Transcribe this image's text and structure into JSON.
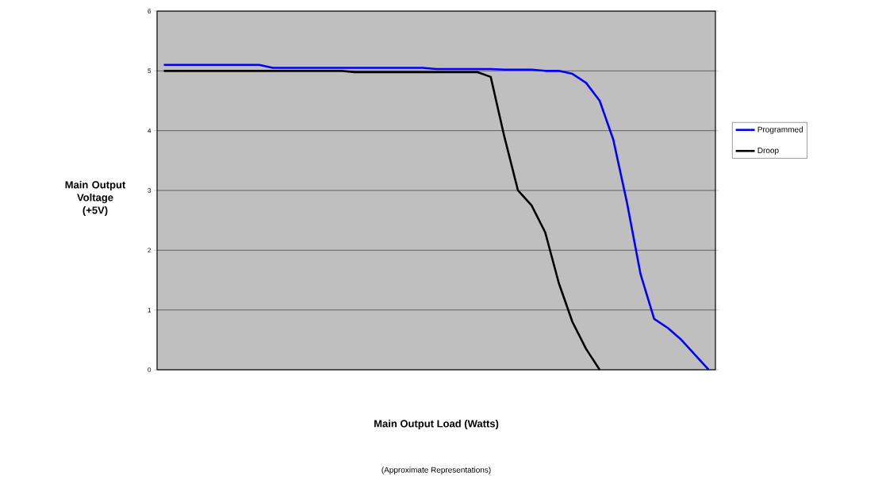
{
  "chart_data": {
    "type": "line",
    "xlabel": "Main Output Load (Watts)",
    "ylabel": "Main Output Voltage (+5V)",
    "annotations": [
      "(Approximate Representations)"
    ],
    "categories": [
      null,
      null,
      null,
      null,
      null,
      null,
      null,
      null,
      null,
      null,
      null,
      null,
      null,
      null,
      null,
      null,
      null,
      null,
      null,
      null,
      null,
      null,
      null,
      null,
      null,
      null,
      null,
      null,
      null,
      null,
      null,
      null,
      null,
      null,
      null,
      null,
      null,
      null,
      null,
      null,
      null
    ],
    "ylim": [
      0,
      6
    ],
    "yticks": [
      0,
      1,
      2,
      3,
      4,
      5,
      6
    ],
    "grid": "y",
    "legend": "right",
    "marker": "none",
    "line_style": "solid",
    "series": [
      {
        "name": "Programmed",
        "color": "#0000ff",
        "values": [
          5.1,
          5.1,
          5.1,
          5.1,
          5.1,
          5.1,
          5.1,
          5.1,
          5.05,
          5.05,
          5.05,
          5.05,
          5.05,
          5.05,
          5.05,
          5.05,
          5.05,
          5.05,
          5.05,
          5.05,
          5.03,
          5.03,
          5.03,
          5.03,
          5.03,
          5.02,
          5.02,
          5.02,
          5.0,
          5.0,
          4.95,
          4.8,
          4.5,
          3.85,
          2.8,
          1.6,
          0.85,
          0.7,
          0.5,
          0.25,
          0
        ]
      },
      {
        "name": "Droop",
        "color": "#000000",
        "values": [
          5.0,
          5.0,
          5.0,
          5.0,
          5.0,
          5.0,
          5.0,
          5.0,
          5.0,
          5.0,
          5.0,
          5.0,
          5.0,
          5.0,
          4.98,
          4.98,
          4.98,
          4.98,
          4.98,
          4.98,
          4.98,
          4.98,
          4.98,
          4.98,
          4.9,
          3.9,
          3.0,
          2.75,
          2.3,
          1.45,
          0.8,
          0.35,
          0,
          null,
          null,
          null,
          null,
          null,
          null,
          null,
          null
        ]
      }
    ]
  }
}
